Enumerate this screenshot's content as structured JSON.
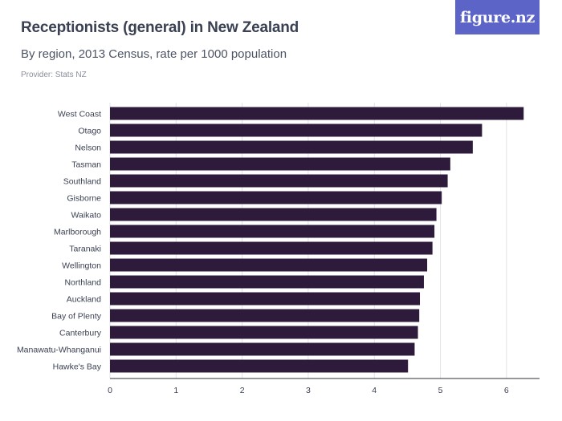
{
  "title": "Receptionists (general) in New Zealand",
  "subtitle": "By region, 2013 Census, rate per 1000 population",
  "provider": "Provider: Stats NZ",
  "brand": "figure.nz",
  "colors": {
    "bar": "#2e1b3c",
    "grid": "#e3e3e6",
    "brand_bg": "#5c64c7"
  },
  "chart_data": {
    "type": "bar",
    "orientation": "horizontal",
    "title": "Receptionists (general) in New Zealand",
    "subtitle": "By region, 2013 Census, rate per 1000 population",
    "categories": [
      "West Coast",
      "Otago",
      "Nelson",
      "Tasman",
      "Southland",
      "Gisborne",
      "Waikato",
      "Marlborough",
      "Taranaki",
      "Wellington",
      "Northland",
      "Auckland",
      "Bay of Plenty",
      "Canterbury",
      "Manawatu-Whanganui",
      "Hawke's Bay"
    ],
    "values": [
      6.26,
      5.63,
      5.49,
      5.15,
      5.11,
      5.02,
      4.94,
      4.91,
      4.88,
      4.8,
      4.75,
      4.69,
      4.68,
      4.66,
      4.61,
      4.51
    ],
    "xticks": [
      0,
      1,
      2,
      3,
      4,
      5,
      6
    ],
    "xlim": [
      0,
      6.5
    ],
    "xlabel": "",
    "ylabel": "",
    "grid": true,
    "legend": "none"
  }
}
